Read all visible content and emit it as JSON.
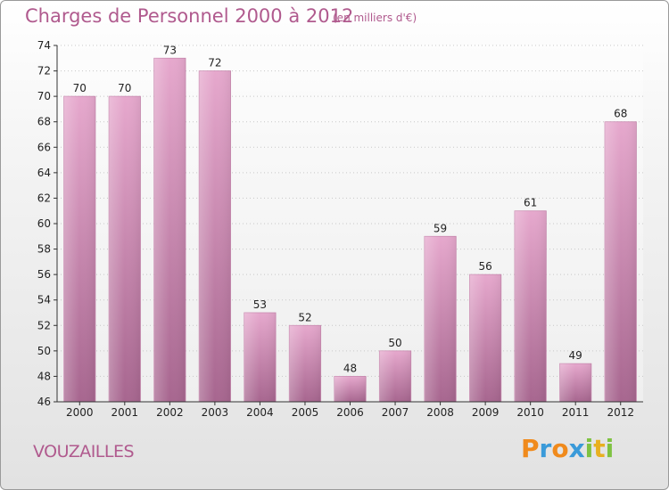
{
  "chart_data": {
    "type": "bar",
    "title": "Charges de Personnel 2000 à 2012",
    "subtitle": "(en milliers d'€)",
    "categories": [
      "2000",
      "2001",
      "2002",
      "2003",
      "2004",
      "2005",
      "2006",
      "2007",
      "2008",
      "2009",
      "2010",
      "2011",
      "2012"
    ],
    "values": [
      70,
      70,
      73,
      72,
      53,
      52,
      48,
      50,
      59,
      56,
      61,
      49,
      68
    ],
    "ylim": [
      46,
      74
    ],
    "yticks": [
      46,
      48,
      50,
      52,
      54,
      56,
      58,
      60,
      62,
      64,
      66,
      68,
      70,
      72,
      74
    ],
    "grid": true,
    "bar_color": "#d892bc"
  },
  "commune": "VOUZAILLES",
  "logo": {
    "letters": [
      "P",
      "r",
      "o",
      "x",
      "i",
      "t",
      "i"
    ],
    "colors": [
      "#f08a1c",
      "#3a9ad9",
      "#f08a1c",
      "#3a9ad9",
      "#7fc242",
      "#e8b020",
      "#7fc242"
    ]
  }
}
